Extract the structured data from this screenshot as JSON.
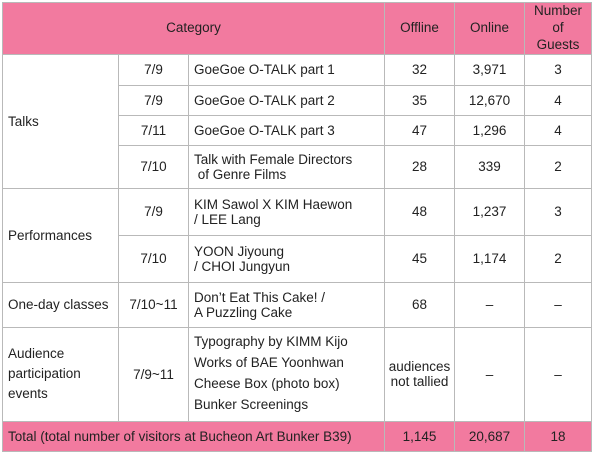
{
  "headers": {
    "category": "Category",
    "offline": "Offline",
    "online": "Online",
    "guests_line1": "Number",
    "guests_line2": "of Guests"
  },
  "talks": {
    "group": "Talks",
    "rows": [
      {
        "date": "7/9",
        "title": [
          "GoeGoe O-TALK part 1"
        ],
        "offline": "32",
        "online": "3,971",
        "guests": "3"
      },
      {
        "date": "7/9",
        "title": [
          "GoeGoe O-TALK part 2"
        ],
        "offline": "35",
        "online": "12,670",
        "guests": "4"
      },
      {
        "date": "7/11",
        "title": [
          "GoeGoe O-TALK part 3"
        ],
        "offline": "47",
        "online": "1,296",
        "guests": "4"
      },
      {
        "date": "7/10",
        "title": [
          "Talk with Female Directors",
          " of Genre Films"
        ],
        "offline": "28",
        "online": "339",
        "guests": "2"
      }
    ]
  },
  "performances": {
    "group": "Performances",
    "rows": [
      {
        "date": "7/9",
        "title": [
          "KIM Sawol X KIM Haewon",
          "/ LEE Lang"
        ],
        "offline": "48",
        "online": "1,237",
        "guests": "3"
      },
      {
        "date": "7/10",
        "title": [
          "YOON Jiyoung",
          "/ CHOI Jungyun"
        ],
        "offline": "45",
        "online": "1,174",
        "guests": "2"
      }
    ]
  },
  "classes": {
    "group": "One-day classes",
    "date": "7/10~11",
    "title": [
      "Don’t Eat This Cake! /",
      "A Puzzling Cake"
    ],
    "offline": "68",
    "online": "–",
    "guests": "–"
  },
  "audience": {
    "group": [
      "Audience",
      "participation",
      "events"
    ],
    "date": "7/9~11",
    "title": [
      "Typography by KIMM Kijo",
      "Works of BAE Yoonhwan",
      "Cheese Box (photo box)",
      "Bunker Screenings"
    ],
    "offline": [
      "audiences",
      "not tallied"
    ],
    "online": "–",
    "guests": "–"
  },
  "total": {
    "label": "Total (total number of visitors at Bucheon Art Bunker B39)",
    "offline": "1,145",
    "online": "20,687",
    "guests": "18"
  },
  "colors": {
    "header_bg": "#f27a9f",
    "border": "#b9b9b9"
  }
}
